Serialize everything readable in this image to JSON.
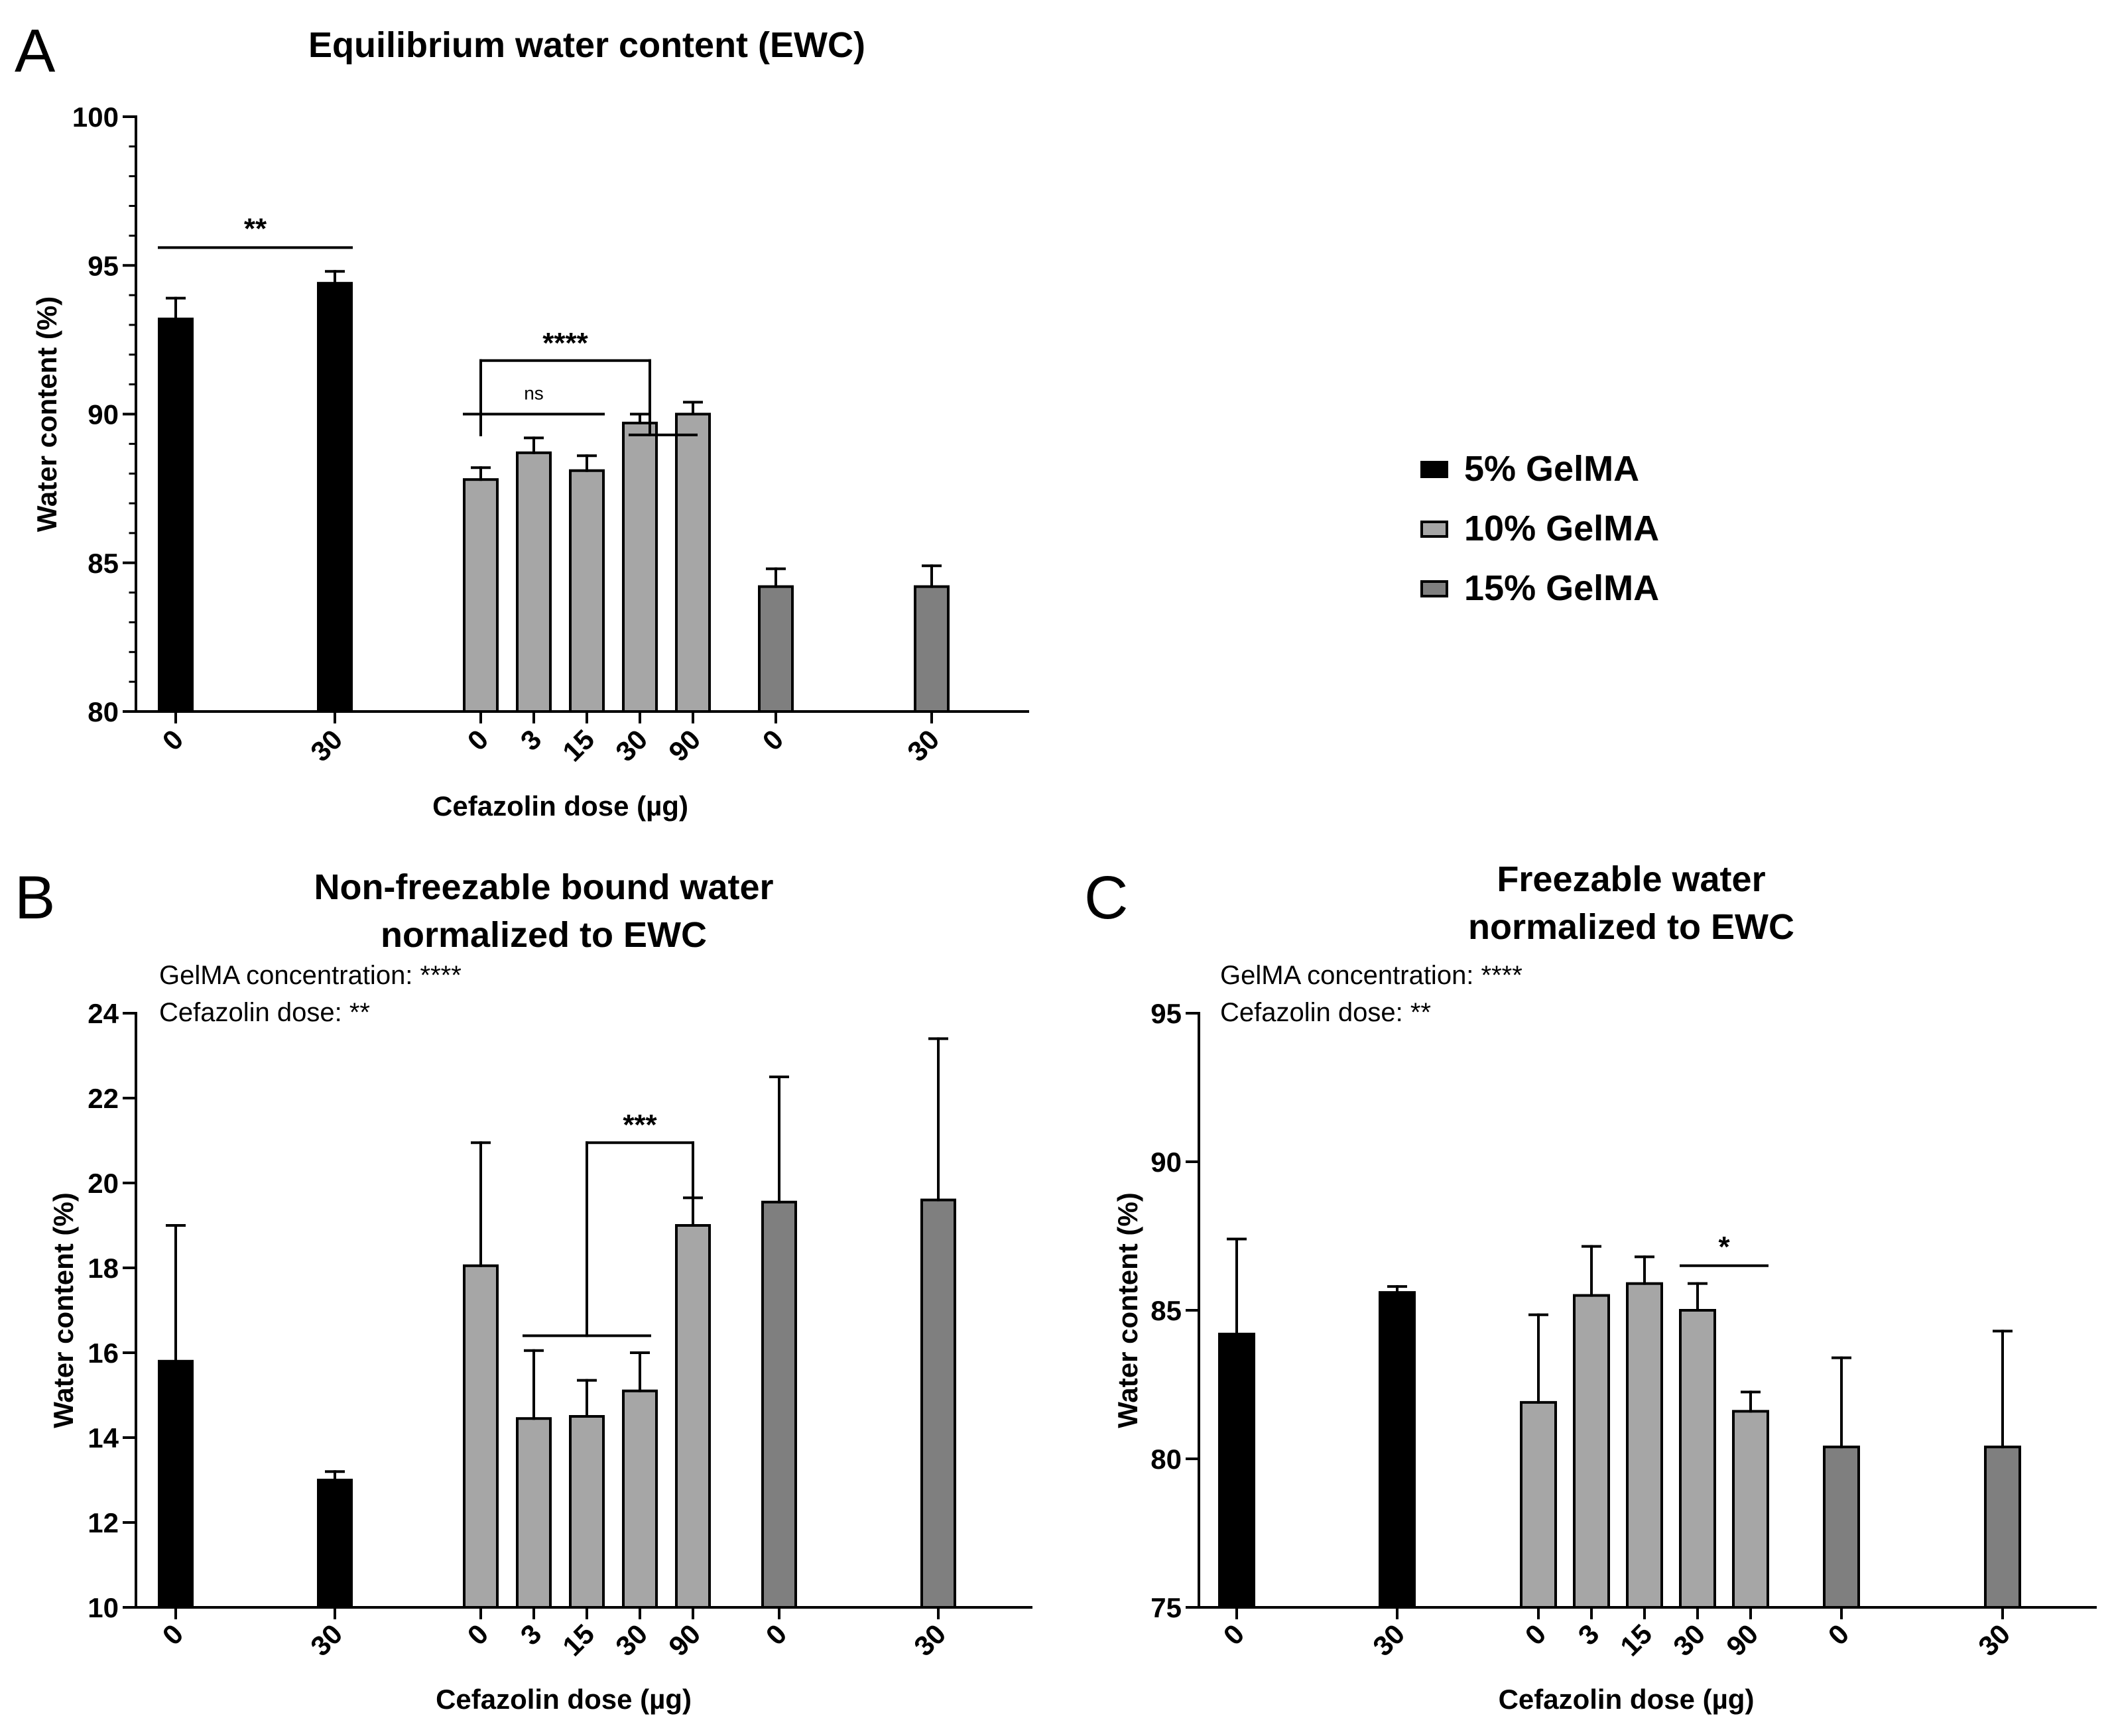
{
  "figure": {
    "legend": [
      {
        "label": "5% GelMA",
        "color": "#000000"
      },
      {
        "label": "10% GelMA",
        "color": "#a6a6a6"
      },
      {
        "label": "15% GelMA",
        "color": "#7f7f7f"
      }
    ]
  },
  "chart_data": [
    {
      "id": "A",
      "panel_label": "A",
      "type": "bar",
      "title": "Equilibrium water content (EWC)",
      "title_lines": [
        "Equilibrium water content (EWC)"
      ],
      "xlabel": "Cefazolin dose (µg)",
      "ylabel": "Water content (%)",
      "ylim": [
        80,
        100
      ],
      "yticks": [
        "80",
        "85",
        "90",
        "95",
        "100"
      ],
      "minor_ticks": true,
      "notes": [],
      "bars": [
        {
          "group": "5% GelMA",
          "dose": "0",
          "value": 93.2,
          "error": 0.7
        },
        {
          "group": "5% GelMA",
          "dose": "30",
          "value": 94.4,
          "error": 0.4
        },
        {
          "group": "10% GelMA",
          "dose": "0",
          "value": 87.8,
          "error": 0.4
        },
        {
          "group": "10% GelMA",
          "dose": "3",
          "value": 88.7,
          "error": 0.5
        },
        {
          "group": "10% GelMA",
          "dose": "15",
          "value": 88.1,
          "error": 0.5
        },
        {
          "group": "10% GelMA",
          "dose": "30",
          "value": 89.7,
          "error": 0.3
        },
        {
          "group": "10% GelMA",
          "dose": "90",
          "value": 90.0,
          "error": 0.4
        },
        {
          "group": "15% GelMA",
          "dose": "0",
          "value": 84.2,
          "error": 0.6
        },
        {
          "group": "15% GelMA",
          "dose": "30",
          "value": 84.2,
          "error": 0.7
        }
      ],
      "annotations": [
        {
          "text": "**",
          "kind": "line",
          "from": 0,
          "to": 1,
          "level": 95.6
        },
        {
          "text": "****",
          "kind": "bracket",
          "from": 2,
          "to": [
            5,
            6
          ],
          "level": 91.8,
          "arm": 89.3
        },
        {
          "text": "ns",
          "kind": "line",
          "from": 2,
          "to": 4,
          "level": 90.0,
          "small": true
        }
      ]
    },
    {
      "id": "B",
      "panel_label": "B",
      "type": "bar",
      "title": "Non-freezable bound water normalized to EWC",
      "title_lines": [
        "Non-freezable bound water",
        "normalized to EWC"
      ],
      "xlabel": "Cefazolin dose (µg)",
      "ylabel": "Water content (%)",
      "ylim": [
        10,
        24
      ],
      "yticks": [
        "10",
        "12",
        "14",
        "16",
        "18",
        "20",
        "22",
        "24"
      ],
      "minor_ticks": false,
      "notes": [
        "GelMA concentration: ****",
        "Cefazolin dose: **"
      ],
      "bars": [
        {
          "group": "5% GelMA",
          "dose": "0",
          "value": 15.8,
          "error": 3.2
        },
        {
          "group": "5% GelMA",
          "dose": "30",
          "value": 13.0,
          "error": 0.2
        },
        {
          "group": "10% GelMA",
          "dose": "0",
          "value": 18.05,
          "error": 2.9
        },
        {
          "group": "10% GelMA",
          "dose": "3",
          "value": 14.45,
          "error": 1.6
        },
        {
          "group": "10% GelMA",
          "dose": "15",
          "value": 14.5,
          "error": 0.85
        },
        {
          "group": "10% GelMA",
          "dose": "30",
          "value": 15.1,
          "error": 0.9
        },
        {
          "group": "10% GelMA",
          "dose": "90",
          "value": 19.0,
          "error": 0.65
        },
        {
          "group": "15% GelMA",
          "dose": "0",
          "value": 19.55,
          "error": 2.95
        },
        {
          "group": "15% GelMA",
          "dose": "30",
          "value": 19.6,
          "error": 3.8
        }
      ],
      "annotations": [
        {
          "text": "***",
          "kind": "bracket",
          "from": [
            3,
            5
          ],
          "to": 6,
          "level": 20.95,
          "arm": 19.7,
          "base_level": 16.4
        }
      ]
    },
    {
      "id": "C",
      "panel_label": "C",
      "type": "bar",
      "title": "Freezable water normalized to EWC",
      "title_lines": [
        "Freezable water",
        "normalized to EWC"
      ],
      "xlabel": "Cefazolin dose (µg)",
      "ylabel": "Water content (%)",
      "ylim": [
        75,
        95
      ],
      "yticks": [
        "75",
        "80",
        "85",
        "90",
        "95"
      ],
      "minor_ticks": false,
      "notes": [
        "GelMA concentration: ****",
        "Cefazolin dose: **"
      ],
      "bars": [
        {
          "group": "5% GelMA",
          "dose": "0",
          "value": 84.2,
          "error": 3.2
        },
        {
          "group": "5% GelMA",
          "dose": "30",
          "value": 85.6,
          "error": 0.2
        },
        {
          "group": "10% GelMA",
          "dose": "0",
          "value": 81.9,
          "error": 2.95
        },
        {
          "group": "10% GelMA",
          "dose": "3",
          "value": 85.5,
          "error": 1.65
        },
        {
          "group": "10% GelMA",
          "dose": "15",
          "value": 85.9,
          "error": 0.9
        },
        {
          "group": "10% GelMA",
          "dose": "30",
          "value": 85.0,
          "error": 0.9
        },
        {
          "group": "10% GelMA",
          "dose": "90",
          "value": 81.6,
          "error": 0.65
        },
        {
          "group": "15% GelMA",
          "dose": "0",
          "value": 80.4,
          "error": 3.0
        },
        {
          "group": "15% GelMA",
          "dose": "30",
          "value": 80.4,
          "error": 3.9
        }
      ],
      "annotations": [
        {
          "text": "*",
          "kind": "line",
          "from": 5,
          "to": 6,
          "level": 86.5
        }
      ]
    }
  ]
}
